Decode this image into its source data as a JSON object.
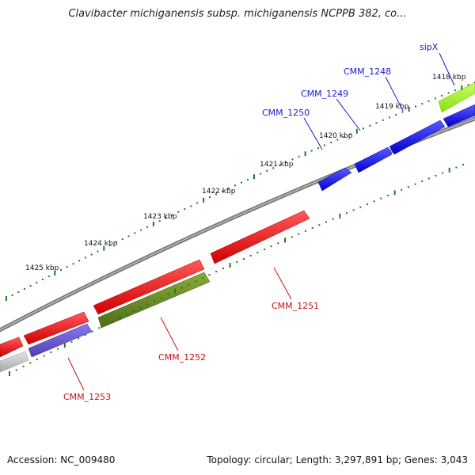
{
  "title": "Clavibacter michiganensis subsp. michiganensis NCPPB 382, co...",
  "accession_text": "Accession: NC_009480",
  "stats_text": "Topology: circular; Length: 3,297,891 bp; Genes: 3,043",
  "colors": {
    "backbone": "#8a8a8a",
    "tick": "#1f7a1f",
    "tick_label": "#111111",
    "blue_gene": "#1a1ae6",
    "red_gene": "#ee1111",
    "lime_gene": "#99ee22",
    "olive_gene": "#668822",
    "slate_gene": "#6a5acd",
    "gray_gene": "#c0c0c0",
    "blue_label": "#1a1acc",
    "red_label": "#cc1111"
  },
  "ticks": [
    {
      "label": "1418 kbp"
    },
    {
      "label": "1419 kbp"
    },
    {
      "label": "1420 kbp"
    },
    {
      "label": "1421 kbp"
    },
    {
      "label": "1422 kbp"
    },
    {
      "label": "1423 kbp"
    },
    {
      "label": "1424 kbp"
    },
    {
      "label": "1425 kbp"
    }
  ],
  "gene_labels": [
    {
      "name": "sipX",
      "color": "blue"
    },
    {
      "name": "CMM_1248",
      "color": "blue"
    },
    {
      "name": "CMM_1249",
      "color": "blue"
    },
    {
      "name": "CMM_1250",
      "color": "blue"
    },
    {
      "name": "CMM_1251",
      "color": "red"
    },
    {
      "name": "CMM_1252",
      "color": "red"
    },
    {
      "name": "CMM_1253",
      "color": "red"
    }
  ]
}
